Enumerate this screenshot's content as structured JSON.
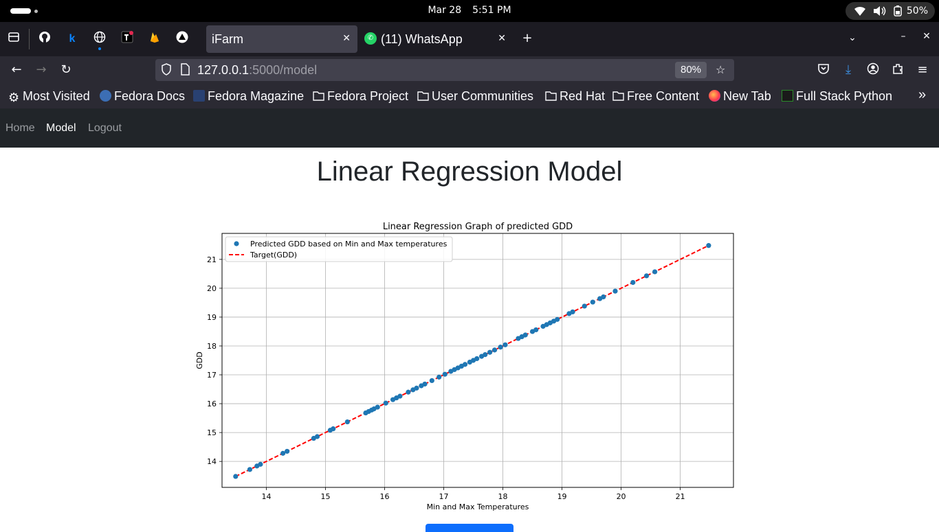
{
  "system": {
    "date": "Mar 28",
    "time": "5:51 PM",
    "battery": "50%"
  },
  "browser": {
    "tabs": [
      {
        "title": "iFarm",
        "active": true
      },
      {
        "title": "(11) WhatsApp",
        "active": false
      }
    ],
    "url_host": "127.0.0.1",
    "url_path": ":5000/model",
    "zoom": "80%",
    "bookmarks": [
      "Most Visited",
      "Fedora Docs",
      "Fedora Magazine",
      "Fedora Project",
      "User Communities",
      "Red Hat",
      "Free Content",
      "New Tab",
      "Full Stack Python"
    ]
  },
  "site_nav": {
    "home": "Home",
    "model": "Model",
    "logout": "Logout"
  },
  "page": {
    "title": "Linear Regression Model"
  },
  "chart_data": {
    "type": "scatter",
    "title": "Linear Regression Graph of predicted GDD",
    "xlabel": "Min and Max Temperatures",
    "ylabel": "GDD",
    "xlim": [
      13.25,
      21.9
    ],
    "ylim": [
      13.1,
      21.9
    ],
    "xticks": [
      14,
      15,
      16,
      17,
      18,
      19,
      20,
      21
    ],
    "yticks": [
      14,
      15,
      16,
      17,
      18,
      19,
      20,
      21
    ],
    "grid": true,
    "legend_position": "top-left",
    "series": [
      {
        "name": "Predicted GDD based on Min and Max temperatures",
        "kind": "points",
        "color": "#1f77b4",
        "x": [
          13.48,
          13.72,
          13.84,
          13.9,
          14.28,
          14.35,
          14.8,
          14.86,
          15.08,
          15.13,
          15.37,
          15.68,
          15.73,
          15.78,
          15.82,
          15.88,
          16.02,
          16.14,
          16.2,
          16.26,
          16.4,
          16.48,
          16.54,
          16.62,
          16.68,
          16.8,
          16.92,
          17.02,
          17.12,
          17.18,
          17.24,
          17.3,
          17.36,
          17.44,
          17.5,
          17.56,
          17.64,
          17.7,
          17.78,
          17.86,
          17.96,
          18.04,
          18.26,
          18.32,
          18.38,
          18.5,
          18.56,
          18.68,
          18.74,
          18.8,
          18.86,
          18.92,
          19.12,
          19.18,
          19.38,
          19.52,
          19.64,
          19.7,
          19.9,
          20.2,
          20.43,
          20.57,
          21.48
        ],
        "y": [
          13.48,
          13.72,
          13.84,
          13.9,
          14.28,
          14.35,
          14.8,
          14.86,
          15.08,
          15.13,
          15.37,
          15.68,
          15.73,
          15.78,
          15.82,
          15.88,
          16.02,
          16.14,
          16.2,
          16.26,
          16.4,
          16.48,
          16.54,
          16.62,
          16.68,
          16.8,
          16.92,
          17.02,
          17.12,
          17.18,
          17.24,
          17.3,
          17.36,
          17.44,
          17.5,
          17.56,
          17.64,
          17.7,
          17.78,
          17.86,
          17.96,
          18.04,
          18.26,
          18.32,
          18.38,
          18.5,
          18.56,
          18.68,
          18.74,
          18.8,
          18.86,
          18.92,
          19.12,
          19.18,
          19.38,
          19.52,
          19.64,
          19.7,
          19.9,
          20.2,
          20.43,
          20.57,
          21.48
        ]
      },
      {
        "name": "Target(GDD)",
        "kind": "dashed-line",
        "color": "#ff0000",
        "x": [
          13.48,
          21.48
        ],
        "y": [
          13.48,
          21.48
        ]
      }
    ]
  }
}
